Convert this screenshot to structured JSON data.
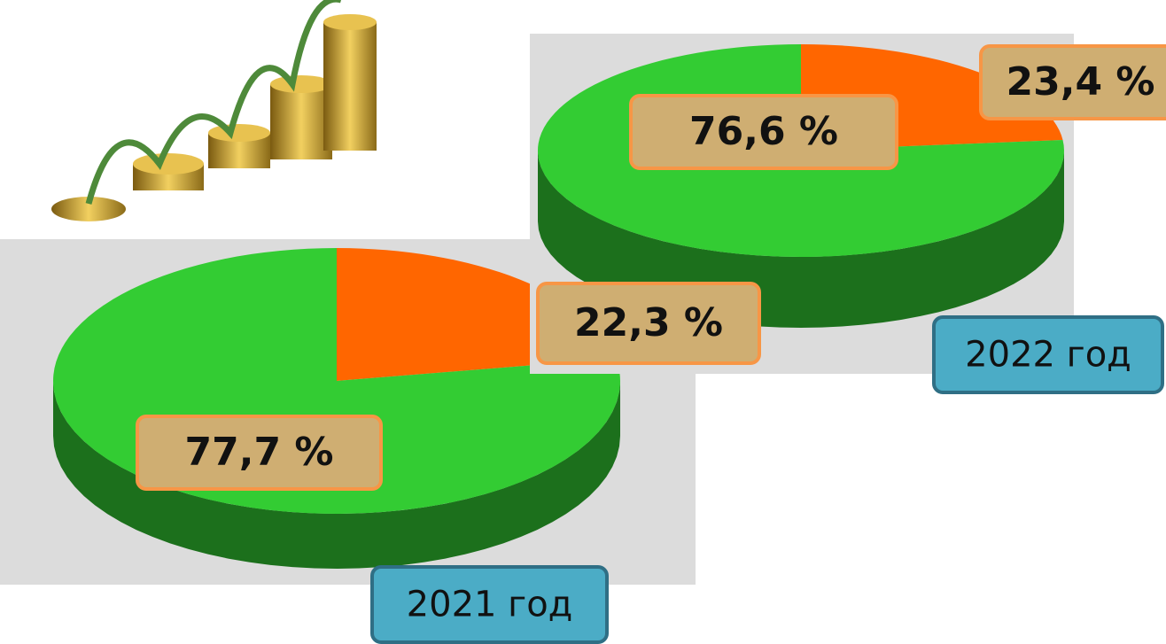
{
  "chart_data": [
    {
      "type": "pie",
      "title": "2021 год",
      "values": [
        22.3,
        77.7
      ],
      "value_labels": [
        "22,3 %",
        "77,7 %"
      ],
      "colors": [
        "#ff6600",
        "#33cc33"
      ]
    },
    {
      "type": "pie",
      "title": "2022 год",
      "values": [
        23.4,
        76.6
      ],
      "value_labels": [
        "23,4 %",
        "76,6 %"
      ],
      "colors": [
        "#ff6600",
        "#33cc33"
      ]
    }
  ]
}
